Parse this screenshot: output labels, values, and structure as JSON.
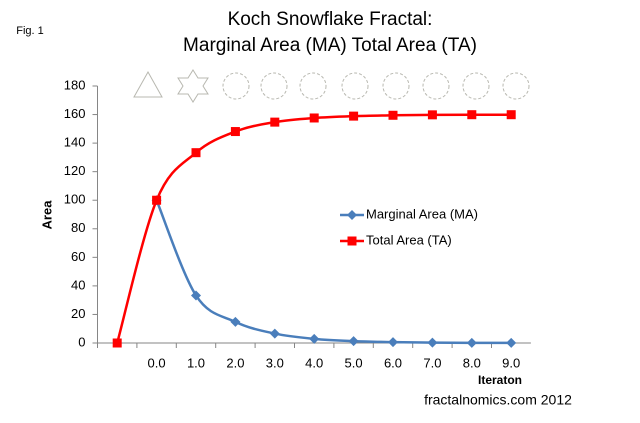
{
  "chart_data": {
    "type": "line",
    "title": [
      "Koch Snowflake Fractal:",
      "Marginal Area (MA) Total Area (TA)"
    ],
    "annotations": [
      "Fig. 1",
      "fractalnomics.com 2012"
    ],
    "x_label": "Iteraton",
    "y_label": "Area",
    "categories": [
      null,
      "0.0",
      "1.0",
      "2.0",
      "3.0",
      "4.0",
      "5.0",
      "6.0",
      "7.0",
      "8.0",
      "9.0"
    ],
    "series": [
      {
        "name": "Marginal Area (MA)",
        "color": "#4a7ebb",
        "marker": "diamond",
        "values": [
          null,
          100,
          33.3,
          14.8,
          6.6,
          2.9,
          1.3,
          0.6,
          0.3,
          0.1,
          0.1
        ]
      },
      {
        "name": "Total Area (TA)",
        "color": "#ff0000",
        "marker": "square",
        "values": [
          0,
          100,
          133.3,
          148.1,
          154.7,
          157.6,
          158.9,
          159.5,
          159.8,
          159.9,
          159.9
        ]
      }
    ],
    "ylim": [
      0,
      180
    ],
    "yticks": [
      0,
      20,
      40,
      60,
      80,
      100,
      120,
      140,
      160,
      180
    ],
    "grid": false,
    "smooth": true,
    "legend": "center"
  }
}
